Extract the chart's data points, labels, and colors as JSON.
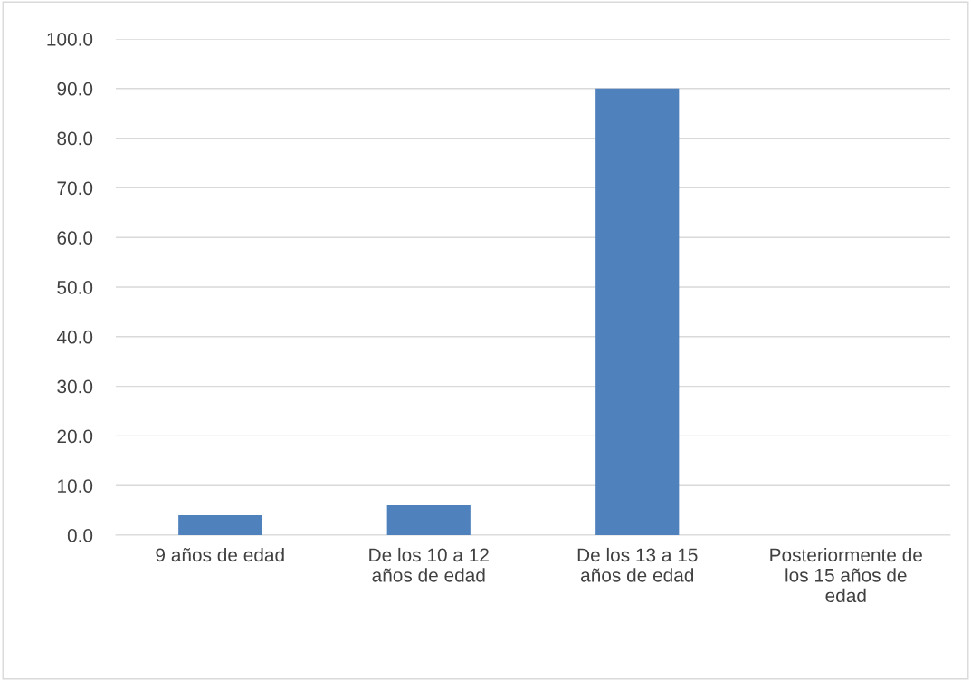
{
  "chart_data": {
    "type": "bar",
    "categories": [
      "9 años de edad",
      "De los 10 a 12\naños de edad",
      "De los 13 a 15\naños de edad",
      "Posteriormente de\nlos 15 años de\nedad"
    ],
    "values": [
      4.0,
      6.0,
      90.0,
      0.0
    ],
    "color": "#4f81bd",
    "ylim": [
      0,
      100
    ],
    "yticks": [
      {
        "value": 0,
        "label": "0.0"
      },
      {
        "value": 10,
        "label": "10.0"
      },
      {
        "value": 20,
        "label": "20.0"
      },
      {
        "value": 30,
        "label": "30.0"
      },
      {
        "value": 40,
        "label": "40.0"
      },
      {
        "value": 50,
        "label": "50.0"
      },
      {
        "value": 60,
        "label": "60.0"
      },
      {
        "value": 70,
        "label": "70.0"
      },
      {
        "value": 80,
        "label": "80.0"
      },
      {
        "value": 90,
        "label": "90.0"
      },
      {
        "value": 100,
        "label": "100.0"
      }
    ],
    "grid": "y",
    "legend": false
  }
}
